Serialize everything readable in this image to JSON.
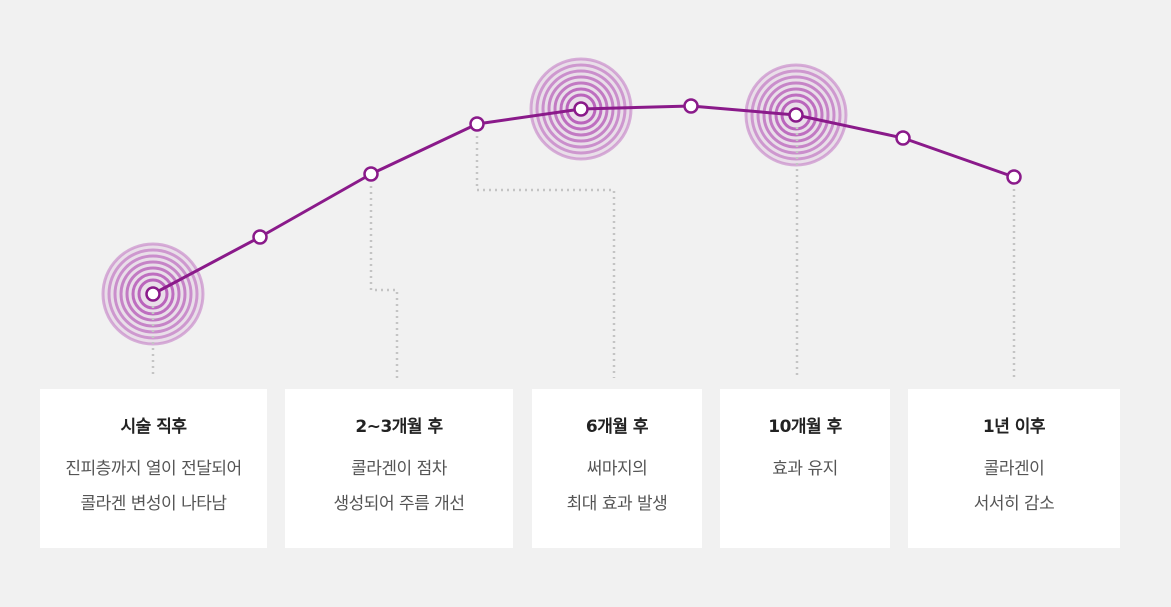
{
  "colors": {
    "line": "#8a1a8a",
    "ripple": "#b65bb8",
    "connector": "#c4c4c4",
    "background": "#f1f1f1",
    "card": "#ffffff"
  },
  "stages": [
    {
      "title": "시술 직후",
      "lines": [
        "진피층까지 열이 전달되어",
        "콜라겐 변성이 나타남"
      ]
    },
    {
      "title": "2~3개월 후",
      "lines": [
        "콜라겐이 점차",
        "생성되어 주름 개선"
      ]
    },
    {
      "title": "6개월 후",
      "lines": [
        "써마지의",
        "최대 효과 발생"
      ]
    },
    {
      "title": "10개월 후",
      "lines": [
        "효과 유지"
      ]
    },
    {
      "title": "1년 이후",
      "lines": [
        "콜라겐이",
        "서서히 감소"
      ]
    }
  ]
}
